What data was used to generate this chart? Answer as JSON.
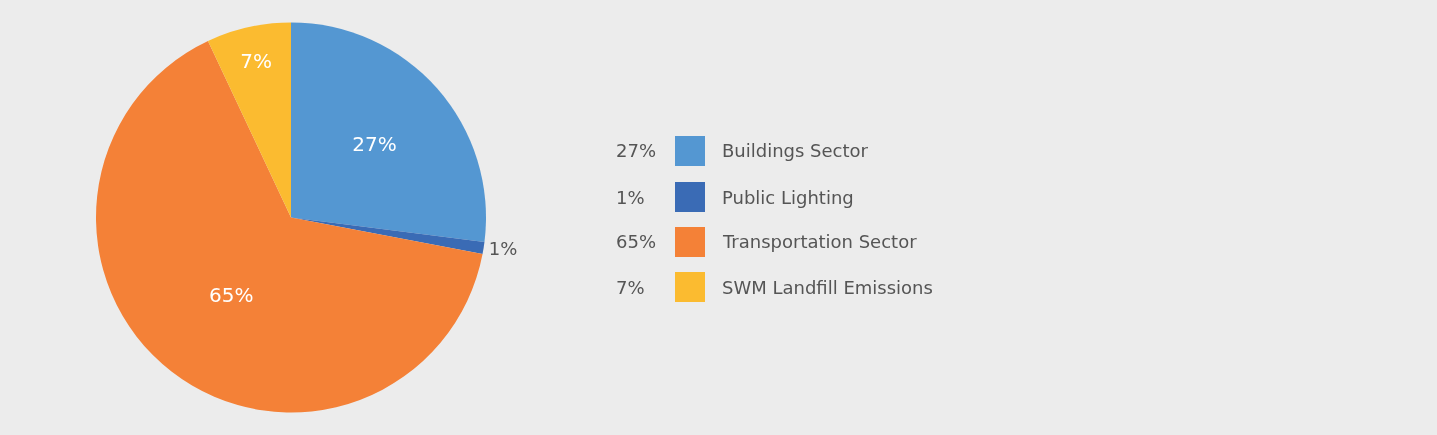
{
  "chart_data": {
    "type": "pie",
    "categories": [
      "Buildings Sector",
      "Public Lighting",
      "Transportation Sector",
      "SWM Landfill Emissions"
    ],
    "values": [
      27,
      1,
      65,
      7
    ],
    "value_labels": [
      "27%",
      "1%",
      "65%",
      "7%"
    ],
    "colors": [
      "#5497d2",
      "#3a6bb5",
      "#f48137",
      "#fbbb30"
    ],
    "legend": "right"
  }
}
